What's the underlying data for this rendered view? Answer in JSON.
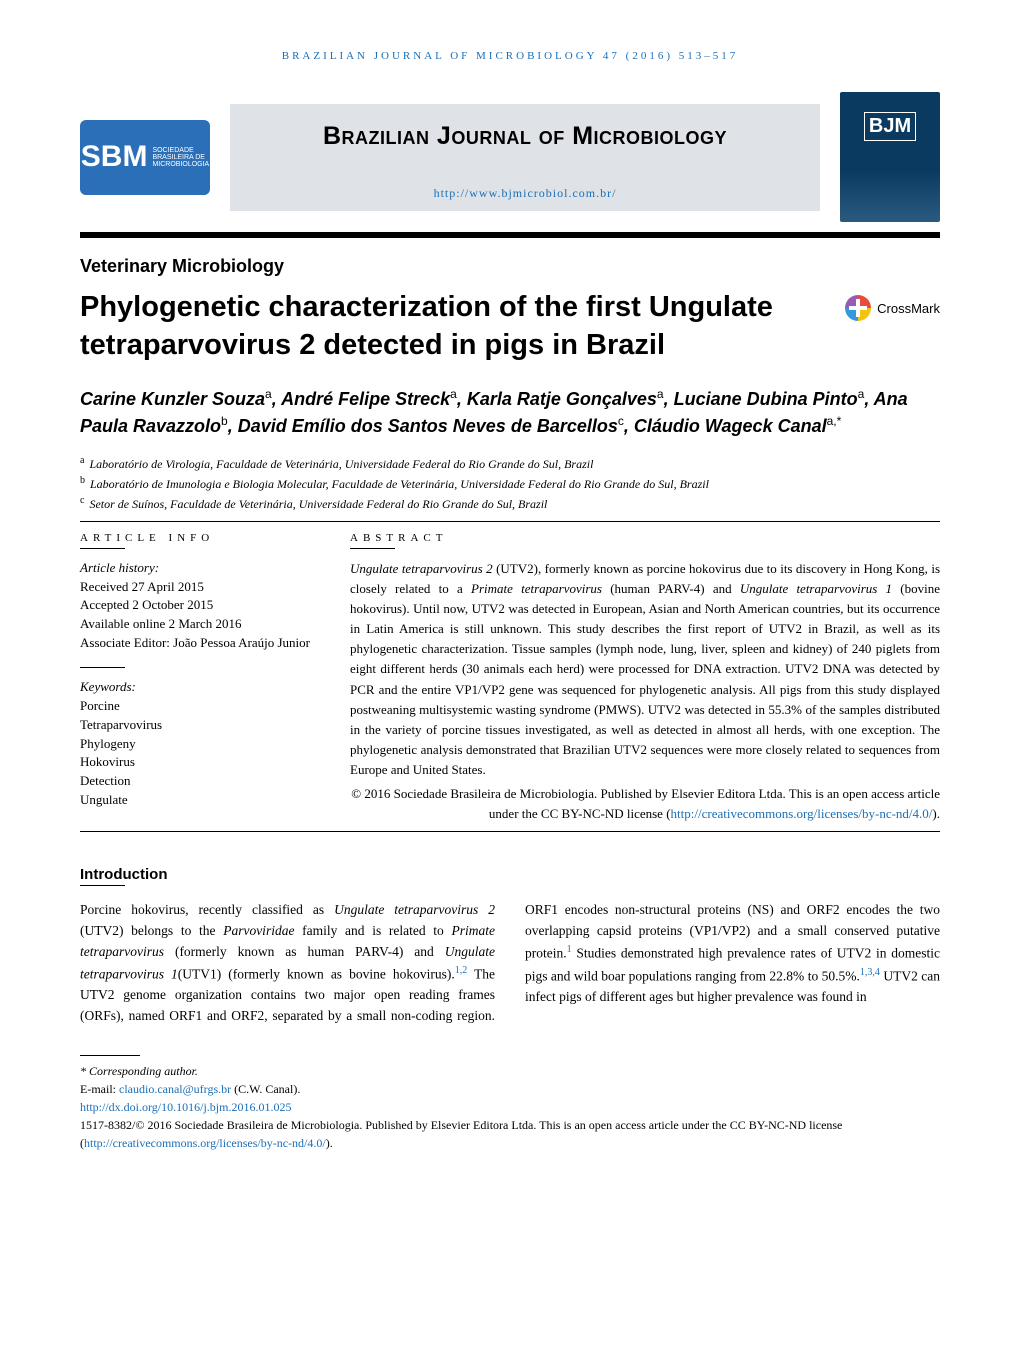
{
  "running_head": "BRAZILIAN JOURNAL OF MICROBIOLOGY 47 (2016) 513–517",
  "logo": {
    "main": "SBM",
    "sub1": "SOCIEDADE",
    "sub2": "BRASILEIRA DE",
    "sub3": "MICROBIOLOGIA"
  },
  "journal_name": "Brazilian Journal of Microbiology",
  "journal_url": "http://www.bjmicrobiol.com.br/",
  "cover_label": "BJM",
  "section_label": "Veterinary Microbiology",
  "article_title": "Phylogenetic characterization of the first Ungulate tetraparvovirus 2 detected in pigs in Brazil",
  "crossmark_label": "CrossMark",
  "authors_html": "Carine Kunzler Souza|a|, André Felipe Streck|a|, Karla Ratje Gonçalves|a|, Luciane Dubina Pinto|a|, Ana Paula Ravazzolo|b|, David Emílio dos Santos Neves de Barcellos|c|, Cláudio Wageck Canal|a,*|",
  "authors": [
    {
      "name": "Carine Kunzler Souza",
      "aff": "a"
    },
    {
      "name": "André Felipe Streck",
      "aff": "a"
    },
    {
      "name": "Karla Ratje Gonçalves",
      "aff": "a"
    },
    {
      "name": "Luciane Dubina Pinto",
      "aff": "a"
    },
    {
      "name": "Ana Paula Ravazzolo",
      "aff": "b"
    },
    {
      "name": "David Emílio dos Santos Neves de Barcellos",
      "aff": "c"
    },
    {
      "name": "Cláudio Wageck Canal",
      "aff": "a,*"
    }
  ],
  "affiliations": [
    {
      "sup": "a",
      "text": "Laboratório de Virologia, Faculdade de Veterinária, Universidade Federal do Rio Grande do Sul, Brazil"
    },
    {
      "sup": "b",
      "text": "Laboratório de Imunologia e Biologia Molecular, Faculdade de Veterinária, Universidade Federal do Rio Grande do Sul, Brazil"
    },
    {
      "sup": "c",
      "text": "Setor de Suínos, Faculdade de Veterinária, Universidade Federal do Rio Grande do Sul, Brazil"
    }
  ],
  "info_head": "ARTICLE INFO",
  "abs_head": "ABSTRACT",
  "history_label": "Article history:",
  "history": [
    "Received 27 April 2015",
    "Accepted 2 October 2015",
    "Available online 2 March 2016",
    "Associate Editor: João Pessoa Araújo Junior"
  ],
  "keywords_label": "Keywords:",
  "keywords": [
    "Porcine",
    "Tetraparvovirus",
    "Phylogeny",
    "Hokovirus",
    "Detection",
    "Ungulate"
  ],
  "abstract_p1_a": "Ungulate tetraparvovirus 2",
  "abstract_p1_b": " (UTV2), formerly known as porcine hokovirus due to its discovery in Hong Kong, is closely related to a ",
  "abstract_p1_c": "Primate tetraparvovirus",
  "abstract_p1_d": " (human PARV-4) and ",
  "abstract_p1_e": "Ungulate tetraparvovirus 1",
  "abstract_p1_f": " (bovine hokovirus). Until now, UTV2 was detected in European, Asian and North American countries, but its occurrence in Latin America is still unknown. This study describes the first report of UTV2 in Brazil, as well as its phylogenetic characterization. Tissue samples (lymph node, lung, liver, spleen and kidney) of 240 piglets from eight different herds (30 animals each herd) were processed for DNA extraction. UTV2 DNA was detected by PCR and the entire VP1/VP2 gene was sequenced for phylogenetic analysis. All pigs from this study displayed postweaning multisystemic wasting syndrome (PMWS). UTV2 was detected in 55.3% of the samples distributed in the variety of porcine tissues investigated, as well as detected in almost all herds, with one exception. The phylogenetic analysis demonstrated that Brazilian UTV2 sequences were more closely related to sequences from Europe and United States.",
  "copyright_text": "© 2016 Sociedade Brasileira de Microbiologia. Published by Elsevier Editora Ltda. This is an open access article under the CC BY-NC-ND license (",
  "license_url": "http://creativecommons.org/licenses/by-nc-nd/4.0/",
  "copyright_close": ").",
  "intro_head": "Introduction",
  "intro_a": "Porcine hokovirus, recently classified as ",
  "intro_b": "Ungulate tetraparvovirus 2",
  "intro_c": " (UTV2) belongs to the ",
  "intro_d": "Parvoviridae",
  "intro_e": " family and is related to ",
  "intro_f": "Primate tetraparvovirus",
  "intro_g": " (formerly known as human PARV-4) and ",
  "intro_h": "Ungulate tetraparvovirus 1",
  "intro_i": "(UTV1) (formerly known as bovine hokovirus).",
  "intro_ref1": "1,2",
  "intro_j": " The UTV2 genome organization contains two major open reading frames (ORFs), named ORF1 and ORF2, separated by a small non-coding region. ORF1 encodes non-structural proteins (NS) and ORF2 encodes the two overlapping capsid proteins (VP1/VP2) and a small conserved putative protein.",
  "intro_ref2": "1",
  "intro_k": " Studies demonstrated high prevalence rates of UTV2 in domestic pigs and wild boar populations ranging from 22.8% to 50.5%.",
  "intro_ref3": "1,3,4",
  "intro_l": " UTV2 can infect pigs of different ages but higher prevalence was found in",
  "foot_corresponding": "* Corresponding author.",
  "foot_email_label": "E-mail: ",
  "foot_email": "claudio.canal@ufrgs.br",
  "foot_email_tail": " (C.W. Canal).",
  "doi": "http://dx.doi.org/10.1016/j.bjm.2016.01.025",
  "issn_line": "1517-8382/© 2016 Sociedade Brasileira de Microbiologia. Published by Elsevier Editora Ltda. This is an open access article under the CC BY-NC-ND license (",
  "colors": {
    "link": "#1a6fb8",
    "sbm_bg": "#2a6fb8",
    "banner_bg": "#dfe3e7",
    "cover_bg": "#0a3a5f"
  }
}
